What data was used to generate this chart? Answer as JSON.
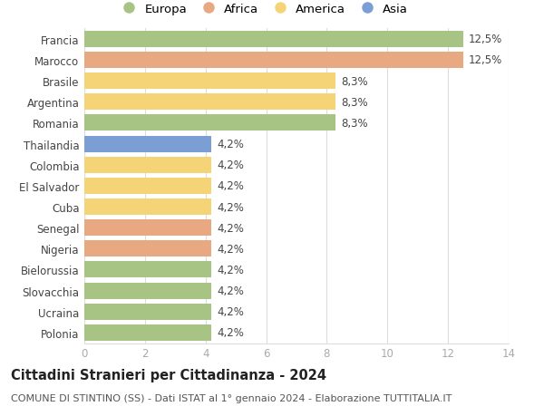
{
  "categories": [
    "Polonia",
    "Ucraina",
    "Slovacchia",
    "Bielorussia",
    "Nigeria",
    "Senegal",
    "Cuba",
    "El Salvador",
    "Colombia",
    "Thailandia",
    "Romania",
    "Argentina",
    "Brasile",
    "Marocco",
    "Francia"
  ],
  "values": [
    4.2,
    4.2,
    4.2,
    4.2,
    4.2,
    4.2,
    4.2,
    4.2,
    4.2,
    4.2,
    8.3,
    8.3,
    8.3,
    12.5,
    12.5
  ],
  "colors": [
    "#a8c484",
    "#a8c484",
    "#a8c484",
    "#a8c484",
    "#e8a882",
    "#e8a882",
    "#f5d478",
    "#f5d478",
    "#f5d478",
    "#7b9fd4",
    "#a8c484",
    "#f5d478",
    "#f5d478",
    "#e8a882",
    "#a8c484"
  ],
  "pct_labels": [
    "4,2%",
    "4,2%",
    "4,2%",
    "4,2%",
    "4,2%",
    "4,2%",
    "4,2%",
    "4,2%",
    "4,2%",
    "4,2%",
    "8,3%",
    "8,3%",
    "8,3%",
    "12,5%",
    "12,5%"
  ],
  "legend_labels": [
    "Europa",
    "Africa",
    "America",
    "Asia"
  ],
  "legend_colors": [
    "#a8c484",
    "#e8a882",
    "#f5d478",
    "#7b9fd4"
  ],
  "title": "Cittadini Stranieri per Cittadinanza - 2024",
  "subtitle": "COMUNE DI STINTINO (SS) - Dati ISTAT al 1° gennaio 2024 - Elaborazione TUTTITALIA.IT",
  "xlim": [
    0,
    14
  ],
  "xticks": [
    0,
    2,
    4,
    6,
    8,
    10,
    12,
    14
  ],
  "background_color": "#ffffff",
  "grid_color": "#dddddd",
  "bar_height": 0.78,
  "title_fontsize": 10.5,
  "subtitle_fontsize": 8,
  "tick_fontsize": 8.5,
  "label_fontsize": 8.5,
  "legend_fontsize": 9.5
}
